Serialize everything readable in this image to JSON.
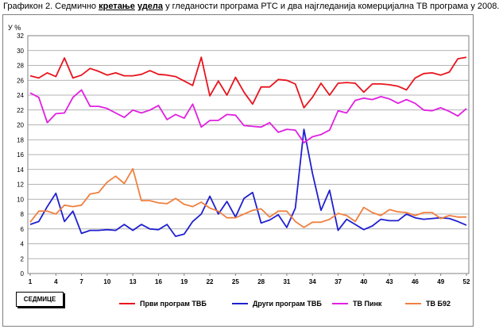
{
  "title": {
    "prefix": "Графикон 2.  Седмично ",
    "bold1": "кретање",
    "space": " ",
    "bold2": "удела",
    "suffix": " у гледаности програма РТС и два најгледанија комерцијална ТВ програма у 2008."
  },
  "chart_data": {
    "type": "line",
    "ylabel": "У %",
    "xlabel": "СЕДМИЦЕ",
    "ylim": [
      0,
      32
    ],
    "yticks": [
      0,
      2,
      4,
      6,
      8,
      10,
      12,
      14,
      16,
      18,
      20,
      22,
      24,
      26,
      28,
      30,
      32
    ],
    "xticks": [
      1,
      4,
      7,
      10,
      13,
      16,
      19,
      22,
      25,
      28,
      31,
      34,
      37,
      40,
      43,
      46,
      49,
      52
    ],
    "xlim": [
      1,
      52
    ],
    "grid": "horizontal",
    "legend_position": "bottom",
    "series": [
      {
        "name": "Први програм ТВБ",
        "color": "#e8141e",
        "values": [
          26.6,
          26.3,
          27.0,
          26.5,
          29.0,
          26.3,
          26.7,
          27.6,
          27.2,
          26.7,
          27.0,
          26.6,
          26.6,
          26.8,
          27.3,
          26.8,
          26.7,
          26.5,
          25.9,
          25.3,
          29.1,
          23.9,
          25.9,
          24.0,
          26.4,
          24.4,
          22.8,
          25.1,
          25.1,
          26.1,
          26.0,
          25.5,
          22.3,
          23.7,
          25.6,
          24.0,
          25.6,
          25.7,
          25.6,
          24.4,
          25.5,
          25.5,
          25.4,
          25.2,
          24.7,
          26.3,
          26.9,
          27.0,
          26.7,
          27.1,
          28.9,
          29.1
        ]
      },
      {
        "name": "Други програм ТВБ",
        "color": "#2020d0",
        "values": [
          6.6,
          7.0,
          9.0,
          10.8,
          7.0,
          8.4,
          5.4,
          5.8,
          5.8,
          5.9,
          5.8,
          6.6,
          5.8,
          6.6,
          6.0,
          5.9,
          6.6,
          5.0,
          5.3,
          7.0,
          8.0,
          10.4,
          8.0,
          9.7,
          7.6,
          10.1,
          10.9,
          6.8,
          7.2,
          7.9,
          6.2,
          8.8,
          19.4,
          13.5,
          8.5,
          11.2,
          5.8,
          7.3,
          6.6,
          5.9,
          6.4,
          7.3,
          7.1,
          7.1,
          8.0,
          7.5,
          7.3,
          7.4,
          7.5,
          7.4,
          7.0,
          6.5
        ]
      },
      {
        "name": "ТВ Пинк",
        "color": "#e020e0",
        "values": [
          24.3,
          23.7,
          20.3,
          21.5,
          21.6,
          23.7,
          24.7,
          22.5,
          22.5,
          22.2,
          21.6,
          21.0,
          22.0,
          21.6,
          22.0,
          22.6,
          20.7,
          21.4,
          20.9,
          22.8,
          19.7,
          20.6,
          20.6,
          21.4,
          21.3,
          19.9,
          19.8,
          19.7,
          20.3,
          19.0,
          19.4,
          19.3,
          17.6,
          18.4,
          18.7,
          19.3,
          21.9,
          21.6,
          23.3,
          23.6,
          23.4,
          23.8,
          23.5,
          22.9,
          23.4,
          22.9,
          22.0,
          21.9,
          22.3,
          21.8,
          21.2,
          22.2
        ]
      },
      {
        "name": "ТВ Б92",
        "color": "#f08040",
        "values": [
          6.9,
          8.4,
          8.4,
          8.0,
          9.2,
          9.0,
          9.2,
          10.7,
          10.9,
          12.3,
          13.1,
          12.1,
          14.1,
          9.8,
          9.8,
          9.5,
          9.4,
          10.1,
          9.3,
          9.0,
          9.6,
          8.8,
          8.4,
          7.5,
          7.5,
          8.0,
          8.5,
          8.7,
          7.6,
          8.4,
          8.4,
          7.0,
          6.2,
          6.9,
          6.9,
          7.3,
          8.1,
          7.8,
          7.0,
          8.9,
          8.2,
          7.8,
          8.6,
          8.3,
          8.2,
          7.8,
          8.2,
          8.2,
          7.4,
          7.8,
          7.6,
          7.6
        ]
      }
    ]
  }
}
